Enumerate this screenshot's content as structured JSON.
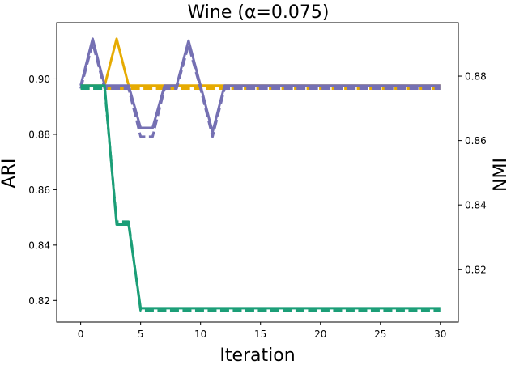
{
  "chart_data": {
    "type": "line",
    "title": "Wine (α=0.075)",
    "xlabel": "Iteration",
    "ylabel": "ARI",
    "y2label": "NMI",
    "xlim": [
      -2,
      31.5
    ],
    "ylim": [
      0.8122,
      0.9203
    ],
    "y2lim": [
      0.8036,
      0.8966
    ],
    "xticks": [
      0,
      5,
      10,
      15,
      20,
      25,
      30
    ],
    "yticks": [
      0.82,
      0.84,
      0.86,
      0.88,
      0.9
    ],
    "yticklabels": [
      "0.82",
      "0.84",
      "0.86",
      "0.88",
      "0.90"
    ],
    "y2ticks": [
      0.82,
      0.84,
      0.86,
      0.88
    ],
    "y2ticklabels": [
      "0.82",
      "0.84",
      "0.86",
      "0.88"
    ],
    "grid": false,
    "line_style_note": "solid = ARI (left axis), dashed = NMI (right axis)",
    "series": [
      {
        "color": "#e6ab02",
        "linestyle": "solid",
        "axis": "left",
        "x": [
          0,
          1,
          2,
          3,
          4,
          5,
          6,
          7,
          8,
          9,
          10,
          11,
          12,
          13,
          14,
          15,
          16,
          17,
          18,
          19,
          20,
          21,
          22,
          23,
          24,
          25,
          26,
          27,
          28,
          29,
          30
        ],
        "values": [
          0.8976,
          0.8976,
          0.8976,
          0.9145,
          0.8976,
          0.8976,
          0.8976,
          0.8976,
          0.8976,
          0.8976,
          0.8976,
          0.8976,
          0.8976,
          0.8976,
          0.8976,
          0.8976,
          0.8976,
          0.8976,
          0.8976,
          0.8976,
          0.8976,
          0.8976,
          0.8976,
          0.8976,
          0.8976,
          0.8976,
          0.8976,
          0.8976,
          0.8976,
          0.8976,
          0.8976
        ]
      },
      {
        "color": "#e6ab02",
        "linestyle": "dashed",
        "axis": "right",
        "x": [
          0,
          1,
          2,
          3,
          4,
          5,
          6,
          7,
          8,
          9,
          10,
          11,
          12,
          13,
          14,
          15,
          16,
          17,
          18,
          19,
          20,
          21,
          22,
          23,
          24,
          25,
          26,
          27,
          28,
          29,
          30
        ],
        "values": [
          0.8761,
          0.8761,
          0.8761,
          0.8761,
          0.8761,
          0.8761,
          0.8761,
          0.8761,
          0.8761,
          0.8761,
          0.8761,
          0.8761,
          0.8761,
          0.8761,
          0.8761,
          0.8761,
          0.8761,
          0.8761,
          0.8761,
          0.8761,
          0.8761,
          0.8761,
          0.8761,
          0.8761,
          0.8761,
          0.8761,
          0.8761,
          0.8761,
          0.8761,
          0.8761,
          0.8761
        ]
      },
      {
        "color": "#7570b3",
        "linestyle": "solid",
        "axis": "left",
        "x": [
          0,
          1,
          2,
          3,
          4,
          5,
          6,
          7,
          8,
          9,
          10,
          11,
          12,
          13,
          14,
          15,
          16,
          17,
          18,
          19,
          20,
          21,
          22,
          23,
          24,
          25,
          26,
          27,
          28,
          29,
          30
        ],
        "values": [
          0.8976,
          0.9145,
          0.8976,
          0.8976,
          0.8976,
          0.8823,
          0.8823,
          0.8976,
          0.8976,
          0.9138,
          0.8976,
          0.8808,
          0.8976,
          0.8976,
          0.8976,
          0.8976,
          0.8976,
          0.8976,
          0.8976,
          0.8976,
          0.8976,
          0.8976,
          0.8976,
          0.8976,
          0.8976,
          0.8976,
          0.8976,
          0.8976,
          0.8976,
          0.8976,
          0.8976
        ]
      },
      {
        "color": "#7570b3",
        "linestyle": "dashed",
        "axis": "right",
        "x": [
          0,
          1,
          2,
          3,
          4,
          5,
          6,
          7,
          8,
          9,
          10,
          11,
          12,
          13,
          14,
          15,
          16,
          17,
          18,
          19,
          20,
          21,
          22,
          23,
          24,
          25,
          26,
          27,
          28,
          29,
          30
        ],
        "values": [
          0.8761,
          0.8902,
          0.8761,
          0.8761,
          0.8761,
          0.8612,
          0.8612,
          0.8761,
          0.8761,
          0.8896,
          0.8761,
          0.8612,
          0.8761,
          0.8761,
          0.8761,
          0.8761,
          0.8761,
          0.8761,
          0.8761,
          0.8761,
          0.8761,
          0.8761,
          0.8761,
          0.8761,
          0.8761,
          0.8761,
          0.8761,
          0.8761,
          0.8761,
          0.8761,
          0.8761
        ]
      },
      {
        "color": "#1b9e77",
        "linestyle": "solid",
        "axis": "left",
        "x": [
          0,
          1,
          2,
          3,
          4,
          5,
          6,
          7,
          8,
          9,
          10,
          11,
          12,
          13,
          14,
          15,
          16,
          17,
          18,
          19,
          20,
          21,
          22,
          23,
          24,
          25,
          26,
          27,
          28,
          29,
          30
        ],
        "values": [
          0.8976,
          0.8976,
          0.8976,
          0.8474,
          0.8474,
          0.8172,
          0.8172,
          0.8172,
          0.8172,
          0.8172,
          0.8172,
          0.8172,
          0.8172,
          0.8172,
          0.8172,
          0.8172,
          0.8172,
          0.8172,
          0.8172,
          0.8172,
          0.8172,
          0.8172,
          0.8172,
          0.8172,
          0.8172,
          0.8172,
          0.8172,
          0.8172,
          0.8172,
          0.8172,
          0.8172
        ]
      },
      {
        "color": "#1b9e77",
        "linestyle": "dashed",
        "axis": "right",
        "x": [
          0,
          1,
          2,
          3,
          4,
          5,
          6,
          7,
          8,
          9,
          10,
          11,
          12,
          13,
          14,
          15,
          16,
          17,
          18,
          19,
          20,
          21,
          22,
          23,
          24,
          25,
          26,
          27,
          28,
          29,
          30
        ],
        "values": [
          0.8761,
          0.8761,
          0.8761,
          0.8348,
          0.8348,
          0.8072,
          0.8072,
          0.8072,
          0.8072,
          0.8072,
          0.8072,
          0.8072,
          0.8072,
          0.8072,
          0.8072,
          0.8072,
          0.8072,
          0.8072,
          0.8072,
          0.8072,
          0.8072,
          0.8072,
          0.8072,
          0.8072,
          0.8072,
          0.8072,
          0.8072,
          0.8072,
          0.8072,
          0.8072,
          0.8072
        ]
      }
    ]
  }
}
